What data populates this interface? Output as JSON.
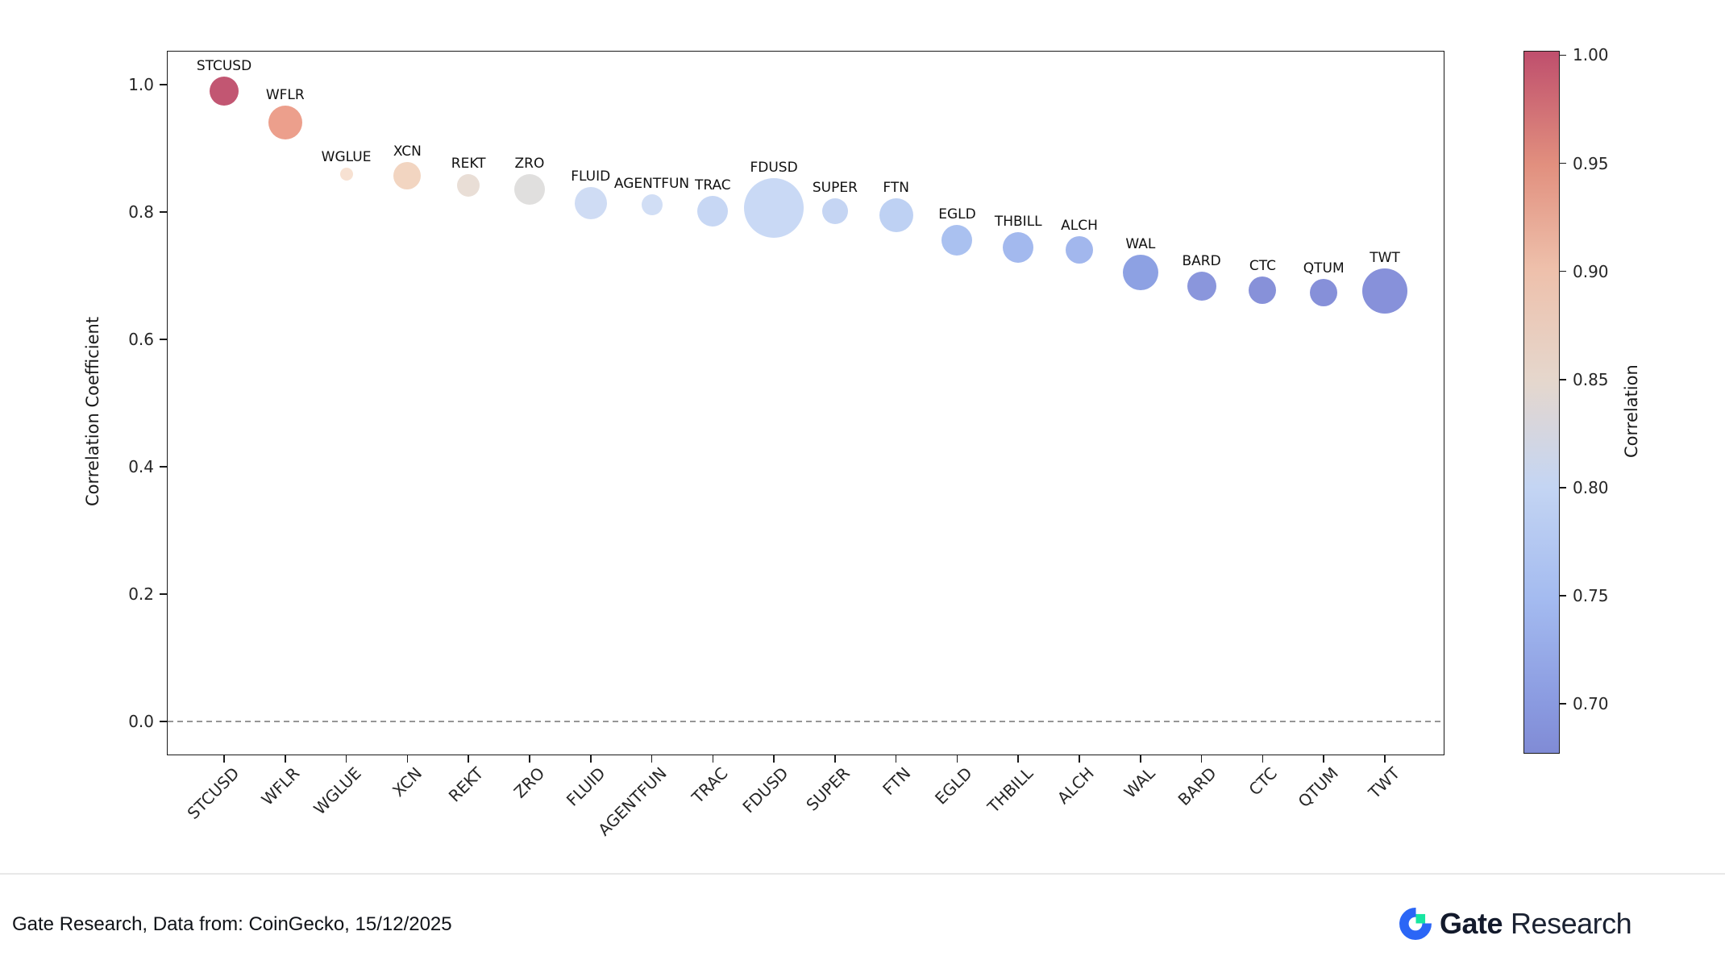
{
  "footer": {
    "source_text": "Gate Research, Data from: CoinGecko, 15/12/2025",
    "brand_bold": "Gate",
    "brand_regular": "Research"
  },
  "chart_data": {
    "type": "scatter",
    "title": "",
    "ylabel": "Correlation Coefficient",
    "ylim": [
      -0.053,
      1.053
    ],
    "grid": false,
    "zero_line": true,
    "yticks": [
      {
        "label": "1.0",
        "value": 1.0
      },
      {
        "label": "0.8",
        "value": 0.8
      },
      {
        "label": "0.6",
        "value": 0.6
      },
      {
        "label": "0.4",
        "value": 0.4
      },
      {
        "label": "0.2",
        "value": 0.2
      },
      {
        "label": "0.0",
        "value": 0.0
      }
    ],
    "categories": [
      "STCUSD",
      "WFLR",
      "WGLUE",
      "XCN",
      "REKT",
      "ZRO",
      "FLUID",
      "AGENTFUN",
      "TRAC",
      "FDUSD",
      "SUPER",
      "FTN",
      "EGLD",
      "THBILL",
      "ALCH",
      "WAL",
      "BARD",
      "CTC",
      "QTUM",
      "TWT"
    ],
    "series": [
      {
        "name": "Correlation Coefficient",
        "values": [
          0.99,
          0.94,
          0.86,
          0.857,
          0.842,
          0.835,
          0.814,
          0.812,
          0.801,
          0.806,
          0.801,
          0.795,
          0.756,
          0.744,
          0.74,
          0.705,
          0.684,
          0.677,
          0.673,
          0.676
        ],
        "bubble_radius_px": [
          18,
          21,
          8,
          17,
          14,
          19,
          20,
          13,
          19,
          37,
          16,
          21,
          19,
          19,
          17,
          22,
          18,
          17,
          17,
          28
        ],
        "point_colors": [
          "#c25672",
          "#ec9f8c",
          "#f7e1d2",
          "#f2d5c1",
          "#e9ded6",
          "#e0dfde",
          "#cfdcf4",
          "#d1def5",
          "#c7d7f4",
          "#c9d9f5",
          "#c5d5f3",
          "#bed1f3",
          "#aac1f0",
          "#a3b9ee",
          "#a2b7ed",
          "#8da1e3",
          "#8a96dc",
          "#8791d9",
          "#8690d9",
          "#8791da"
        ]
      }
    ],
    "colorbar": {
      "label": "Correlation",
      "cmap": "coolwarm",
      "vmin": 0.677,
      "vmax": 1.002,
      "ticks": [
        {
          "label": "1.00",
          "value": 1.0
        },
        {
          "label": "0.95",
          "value": 0.95
        },
        {
          "label": "0.90",
          "value": 0.9
        },
        {
          "label": "0.85",
          "value": 0.85
        },
        {
          "label": "0.80",
          "value": 0.8
        },
        {
          "label": "0.75",
          "value": 0.75
        },
        {
          "label": "0.70",
          "value": 0.7
        }
      ],
      "gradient": [
        {
          "color": "#bf4f6d",
          "pos": 0
        },
        {
          "color": "#e18f7e",
          "pos": 16
        },
        {
          "color": "#eec0ab",
          "pos": 31
        },
        {
          "color": "#e5d7cd",
          "pos": 47
        },
        {
          "color": "#c4d5f3",
          "pos": 62
        },
        {
          "color": "#a4bbf0",
          "pos": 78
        },
        {
          "color": "#8a9ae0",
          "pos": 93
        },
        {
          "color": "#808bd5",
          "pos": 100
        }
      ]
    },
    "brand_colors": {
      "gate_blue": "#2b66f6",
      "gate_green": "#17e6a1"
    }
  }
}
